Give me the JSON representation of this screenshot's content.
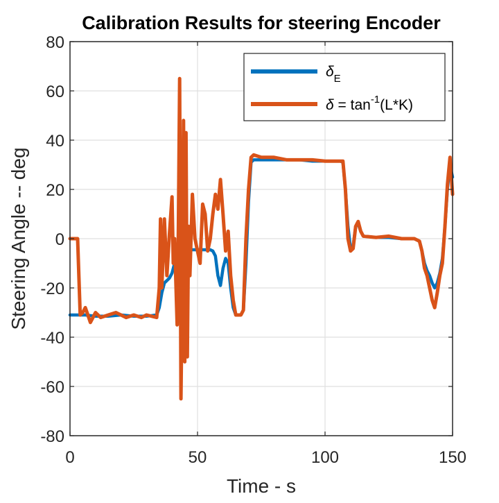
{
  "chart_data": {
    "type": "line",
    "title": "Calibration Results for steering Encoder",
    "xlabel": "Time - s",
    "ylabel": "Steering Angle -- deg",
    "xlim": [
      0,
      150
    ],
    "ylim": [
      -80,
      80
    ],
    "xticks": [
      0,
      50,
      100,
      150
    ],
    "xtick_labels": [
      "0",
      "50",
      "100",
      "150"
    ],
    "yticks": [
      -80,
      -60,
      -40,
      -20,
      0,
      20,
      40,
      60,
      80
    ],
    "ytick_labels": [
      "-80",
      "-60",
      "-40",
      "-20",
      "0",
      "20",
      "40",
      "60",
      "80"
    ],
    "grid": true,
    "legend_position": "top-right",
    "legend": [
      {
        "symbol": "δ",
        "subscript": "E",
        "text": ""
      },
      {
        "symbol": "δ",
        "text": " = tan",
        "superscript": "-1",
        "suffix": "(L*K)"
      }
    ],
    "series": [
      {
        "color": "#0072BD",
        "points": [
          [
            0,
            -31
          ],
          [
            4,
            -31
          ],
          [
            6,
            -31
          ],
          [
            10,
            -31.5
          ],
          [
            15,
            -31.5
          ],
          [
            20,
            -31
          ],
          [
            25,
            -31.5
          ],
          [
            30,
            -31.5
          ],
          [
            34,
            -31
          ],
          [
            35,
            -28
          ],
          [
            36,
            -22
          ],
          [
            37,
            -18
          ],
          [
            38,
            -17
          ],
          [
            39,
            -16
          ],
          [
            40,
            -14
          ],
          [
            41,
            -10
          ],
          [
            42,
            -7
          ],
          [
            43,
            -6
          ],
          [
            44,
            -5
          ],
          [
            46,
            -4.5
          ],
          [
            50,
            -4.5
          ],
          [
            55,
            -4.5
          ],
          [
            56,
            -5
          ],
          [
            57,
            -7
          ],
          [
            58,
            -15
          ],
          [
            59,
            -19
          ],
          [
            60,
            -12
          ],
          [
            61,
            -8
          ],
          [
            62,
            -10
          ],
          [
            63,
            -20
          ],
          [
            64,
            -28
          ],
          [
            65,
            -31
          ],
          [
            67,
            -31
          ],
          [
            68,
            -29
          ],
          [
            69,
            -10
          ],
          [
            70,
            15
          ],
          [
            71,
            31
          ],
          [
            72,
            32
          ],
          [
            75,
            32
          ],
          [
            80,
            32
          ],
          [
            85,
            32
          ],
          [
            90,
            32
          ],
          [
            95,
            31.5
          ],
          [
            100,
            31.5
          ],
          [
            106,
            31.5
          ],
          [
            107,
            31
          ],
          [
            108,
            20
          ],
          [
            109,
            5
          ],
          [
            110,
            -4
          ],
          [
            111,
            -3
          ],
          [
            112,
            5
          ],
          [
            113,
            6
          ],
          [
            114,
            3
          ],
          [
            115,
            1
          ],
          [
            120,
            0.5
          ],
          [
            125,
            0.5
          ],
          [
            130,
            0
          ],
          [
            135,
            0
          ],
          [
            137,
            -1
          ],
          [
            138,
            -5
          ],
          [
            139,
            -10
          ],
          [
            140,
            -13
          ],
          [
            141,
            -15
          ],
          [
            142,
            -18
          ],
          [
            143,
            -20
          ],
          [
            144,
            -18
          ],
          [
            145,
            -14
          ],
          [
            146,
            -8
          ],
          [
            147,
            5
          ],
          [
            148,
            20
          ],
          [
            149,
            30
          ],
          [
            150,
            25
          ]
        ]
      },
      {
        "color": "#D95319",
        "points": [
          [
            0,
            0
          ],
          [
            3,
            0
          ],
          [
            4,
            -31
          ],
          [
            5,
            -30
          ],
          [
            6,
            -28
          ],
          [
            7,
            -31
          ],
          [
            8,
            -34
          ],
          [
            9,
            -32
          ],
          [
            10,
            -30
          ],
          [
            12,
            -32
          ],
          [
            15,
            -31
          ],
          [
            18,
            -30
          ],
          [
            20,
            -31
          ],
          [
            22,
            -32
          ],
          [
            25,
            -31
          ],
          [
            28,
            -32
          ],
          [
            30,
            -31
          ],
          [
            34,
            -32
          ],
          [
            35,
            -20
          ],
          [
            35.5,
            8
          ],
          [
            36,
            -20
          ],
          [
            37,
            8
          ],
          [
            38,
            -15
          ],
          [
            39,
            2
          ],
          [
            40,
            17
          ],
          [
            40.5,
            -10
          ],
          [
            41,
            0
          ],
          [
            42,
            -35
          ],
          [
            42.5,
            5
          ],
          [
            43,
            65
          ],
          [
            43.5,
            -65
          ],
          [
            44,
            -20
          ],
          [
            44.5,
            48
          ],
          [
            45,
            -50
          ],
          [
            45.5,
            43
          ],
          [
            46,
            -48
          ],
          [
            46.5,
            5
          ],
          [
            47,
            -15
          ],
          [
            48,
            18
          ],
          [
            49,
            0
          ],
          [
            50,
            -5
          ],
          [
            51,
            -10
          ],
          [
            52,
            14
          ],
          [
            53,
            10
          ],
          [
            54,
            -5
          ],
          [
            55,
            0
          ],
          [
            56,
            10
          ],
          [
            57,
            18
          ],
          [
            58,
            12
          ],
          [
            59,
            24
          ],
          [
            60,
            10
          ],
          [
            61,
            -5
          ],
          [
            62,
            3
          ],
          [
            63,
            -15
          ],
          [
            64,
            -25
          ],
          [
            65,
            -31
          ],
          [
            67,
            -31
          ],
          [
            68,
            -29
          ],
          [
            69,
            0
          ],
          [
            70,
            20
          ],
          [
            71,
            33
          ],
          [
            72,
            34
          ],
          [
            75,
            33
          ],
          [
            80,
            33
          ],
          [
            85,
            32
          ],
          [
            90,
            32
          ],
          [
            95,
            32
          ],
          [
            100,
            31.5
          ],
          [
            105,
            31.5
          ],
          [
            107,
            31.5
          ],
          [
            108,
            20
          ],
          [
            109,
            0
          ],
          [
            110,
            -5
          ],
          [
            111,
            -4
          ],
          [
            112,
            5
          ],
          [
            113,
            7
          ],
          [
            114,
            3
          ],
          [
            115,
            1
          ],
          [
            120,
            0.5
          ],
          [
            125,
            1
          ],
          [
            130,
            0
          ],
          [
            135,
            0
          ],
          [
            137,
            -1
          ],
          [
            138,
            -5
          ],
          [
            139,
            -12
          ],
          [
            140,
            -15
          ],
          [
            141,
            -20
          ],
          [
            142,
            -25
          ],
          [
            143,
            -28
          ],
          [
            144,
            -22
          ],
          [
            145,
            -15
          ],
          [
            146,
            -10
          ],
          [
            147,
            5
          ],
          [
            148,
            22
          ],
          [
            149,
            33
          ],
          [
            150,
            18
          ]
        ]
      }
    ]
  }
}
